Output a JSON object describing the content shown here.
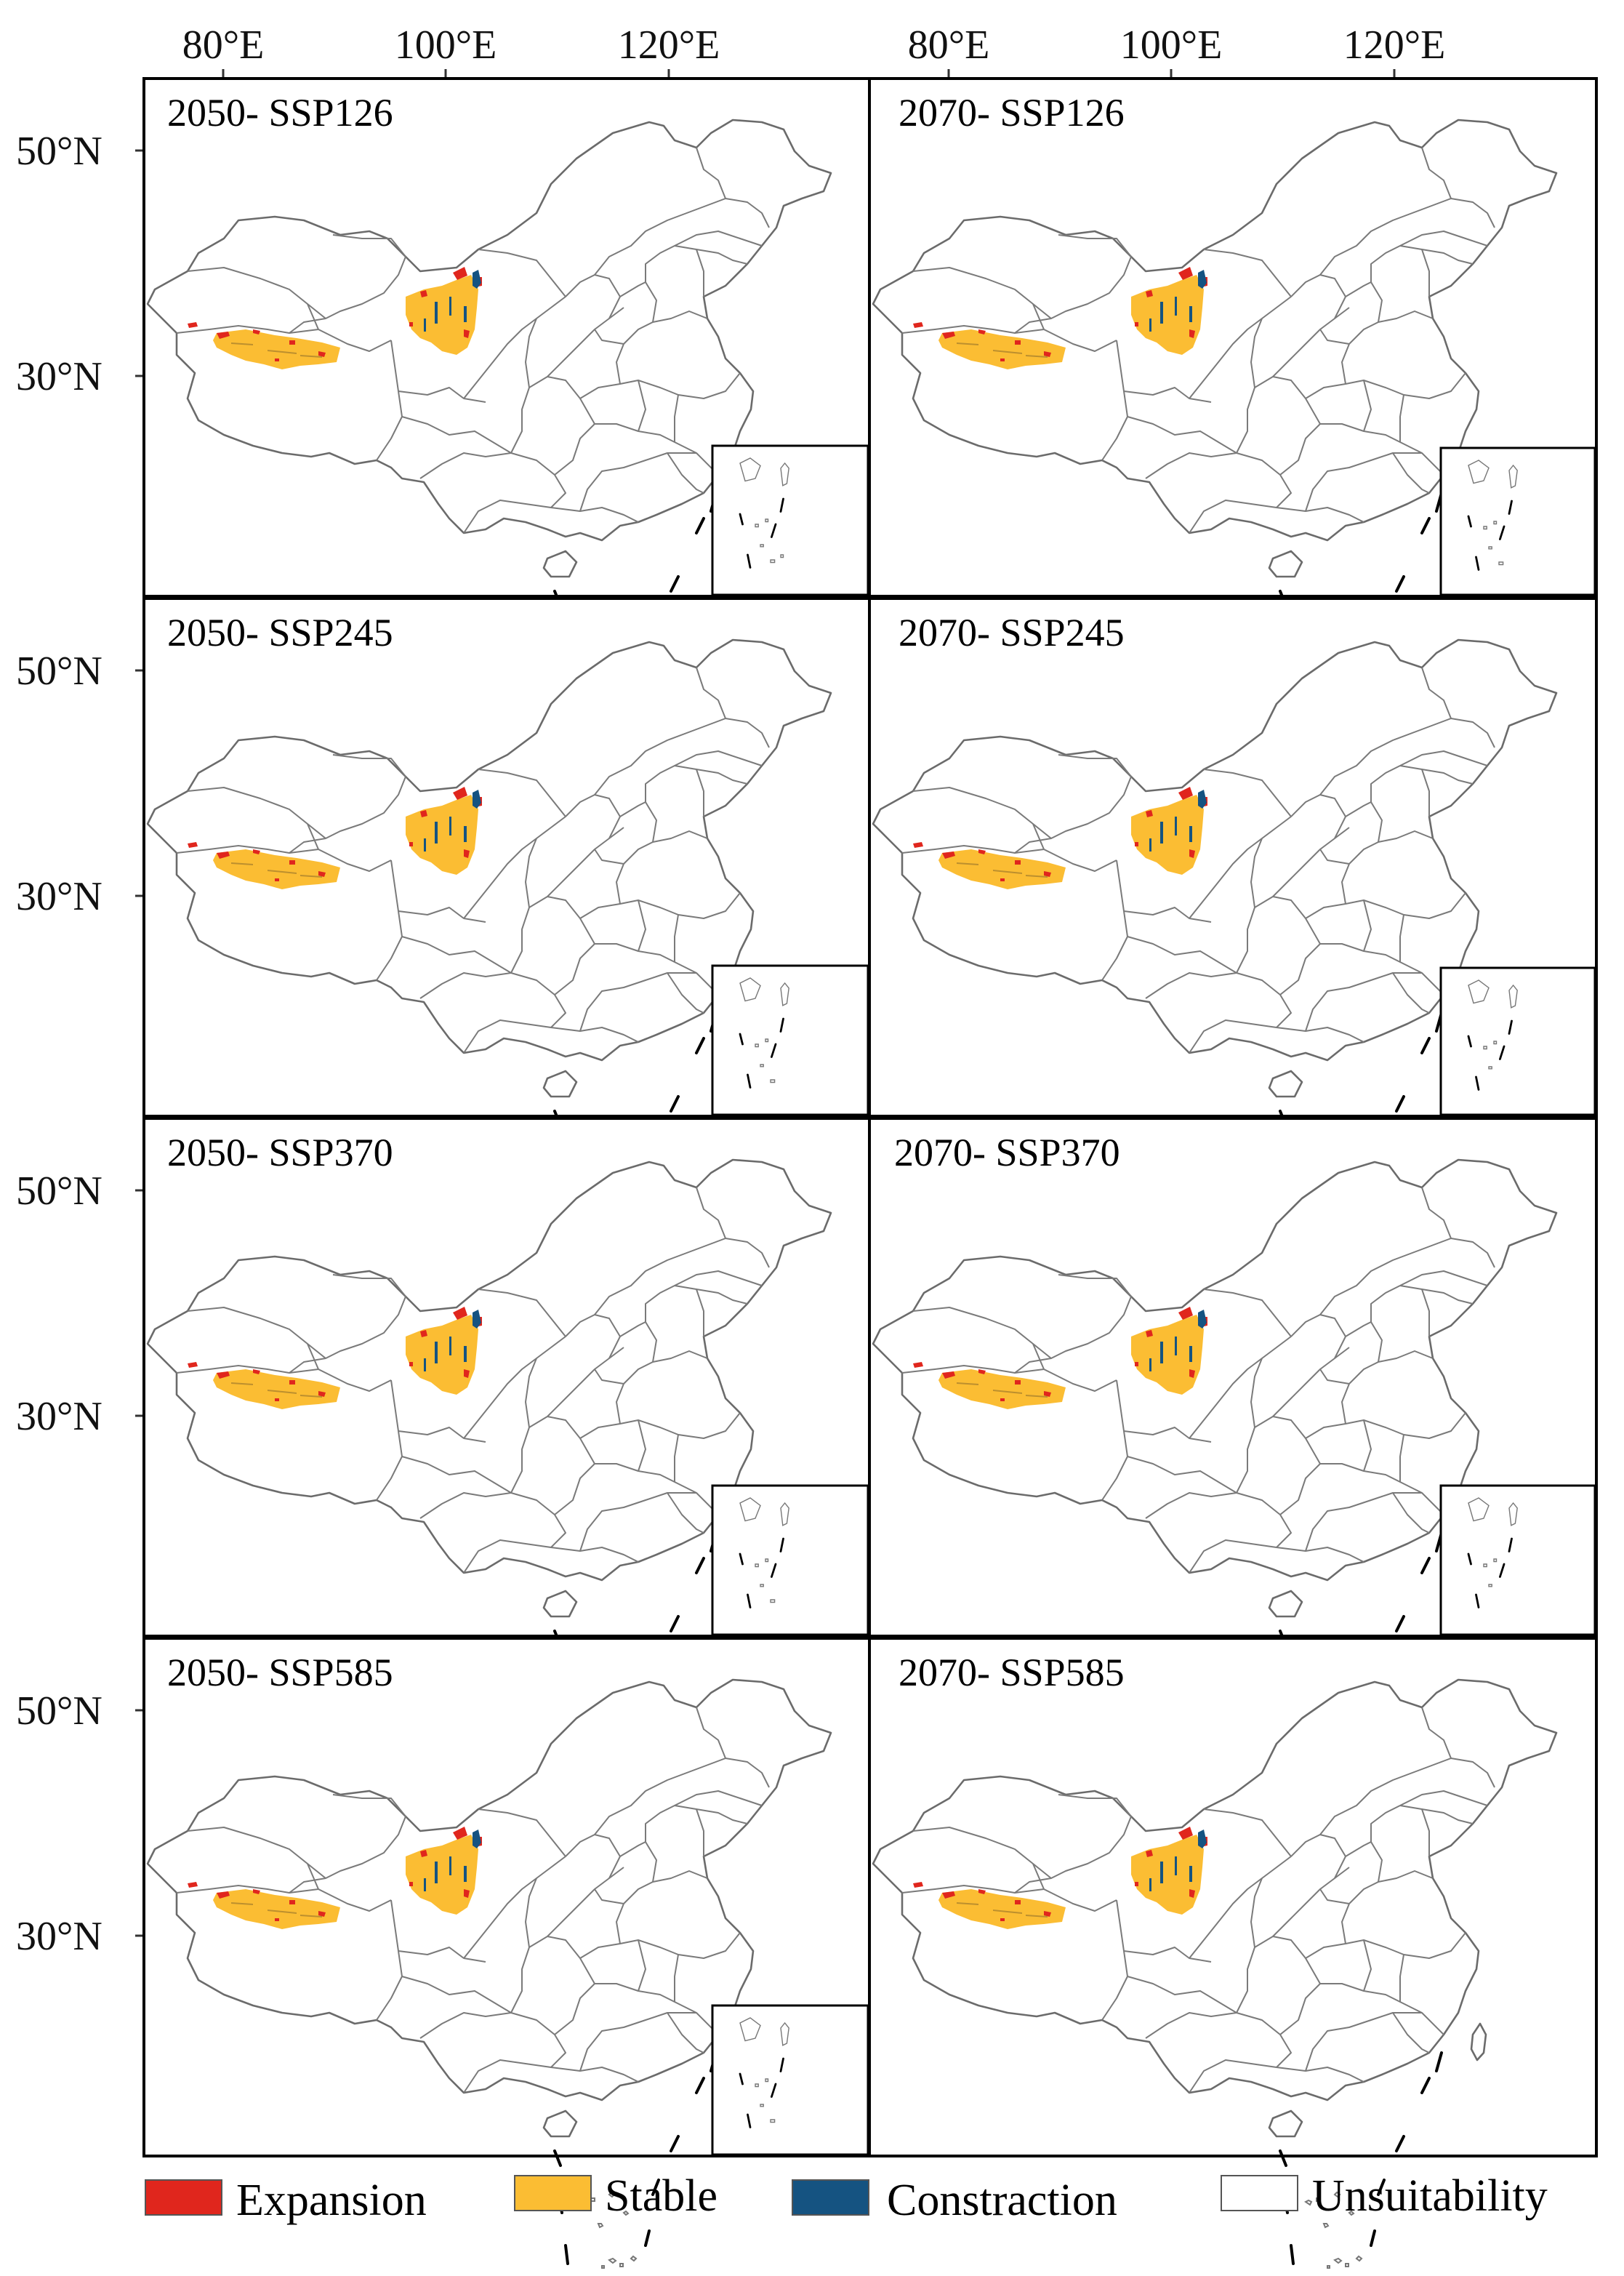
{
  "axes": {
    "top_ticks": [
      "80°E",
      "100°E",
      "120°E"
    ],
    "left_ticks": [
      "50°N",
      "30°N"
    ]
  },
  "panels": [
    {
      "label": "2050- SSP126"
    },
    {
      "label": "2070- SSP126"
    },
    {
      "label": "2050- SSP245"
    },
    {
      "label": "2070- SSP245"
    },
    {
      "label": "2050- SSP370"
    },
    {
      "label": "2070- SSP370"
    },
    {
      "label": "2050- SSP585"
    },
    {
      "label": "2070- SSP585"
    }
  ],
  "legend": {
    "items": [
      {
        "label": "Expansion",
        "color": "#e0261d"
      },
      {
        "label": "Stable",
        "color": "#fbbd33"
      },
      {
        "label": "Constraction",
        "color": "#155381"
      },
      {
        "label": "Unsuitability",
        "color": "#ffffff"
      }
    ]
  },
  "colors": {
    "expansion": "#e0261d",
    "stable": "#fbbd33",
    "contraction": "#155381",
    "border": "#6b6b6b"
  }
}
